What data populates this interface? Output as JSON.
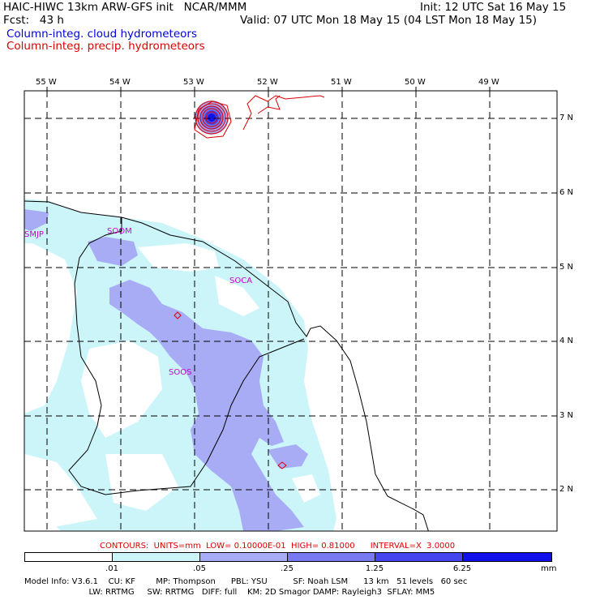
{
  "header": {
    "title_left": "HAIC-HIWC 13km ARW-GFS init   NCAR/MMM",
    "init": "Init: 12 UTC Sat 16 May 15",
    "fcst": "Fcst:   43 h",
    "valid": "Valid: 07 UTC Mon 18 May 15 (04 LST Mon 18 May 15)",
    "field_cloud": "Column-integ. cloud hydrometeors",
    "field_precip": "Column-integ. precip. hydrometeors"
  },
  "colors": {
    "cloud_legend": "#0000dd",
    "precip_legend": "#dd0000",
    "station": "#cc00cc",
    "cb1": "#ffffff",
    "cb2": "#ccf5fa",
    "cb3": "#a8acf4",
    "cb4": "#7a7af0",
    "cb5": "#4545f0",
    "cb6": "#1010e8"
  },
  "axes": {
    "lon_labels": [
      "55 W",
      "54 W",
      "53 W",
      "52 W",
      "51 W",
      "50 W",
      "49 W"
    ],
    "lat_labels": [
      "7 N",
      "6 N",
      "5 N",
      "4 N",
      "3 N",
      "2 N"
    ]
  },
  "stations": [
    {
      "id": "SMJP",
      "lon": -55.2,
      "lat": 5.45
    },
    {
      "id": "SOOM",
      "lon": -53.9,
      "lat": 5.5
    },
    {
      "id": "SOCA",
      "lon": -52.4,
      "lat": 4.8
    },
    {
      "id": "SOOS",
      "lon": -53.3,
      "lat": 3.6
    }
  ],
  "contour_info": "CONTOURS:  UNITS=mm  LOW= 0.10000E-01  HIGH= 0.81000      INTERVAL=X  3.0000",
  "colorbar": {
    "labels": [
      ".01",
      ".05",
      ".25",
      "1.25",
      "6.25"
    ],
    "units": "mm"
  },
  "model_info": {
    "line1": "Model Info: V3.6.1    CU: KF        MP: Thompson      PBL: YSU          SF: Noah LSM      13 km   51 levels   60 sec",
    "line2": "                         LW: RRTMG     SW: RRTMG   DIFF: full    KM: 2D Smagor DAMP: Rayleigh3  SFLAY: MM5"
  }
}
